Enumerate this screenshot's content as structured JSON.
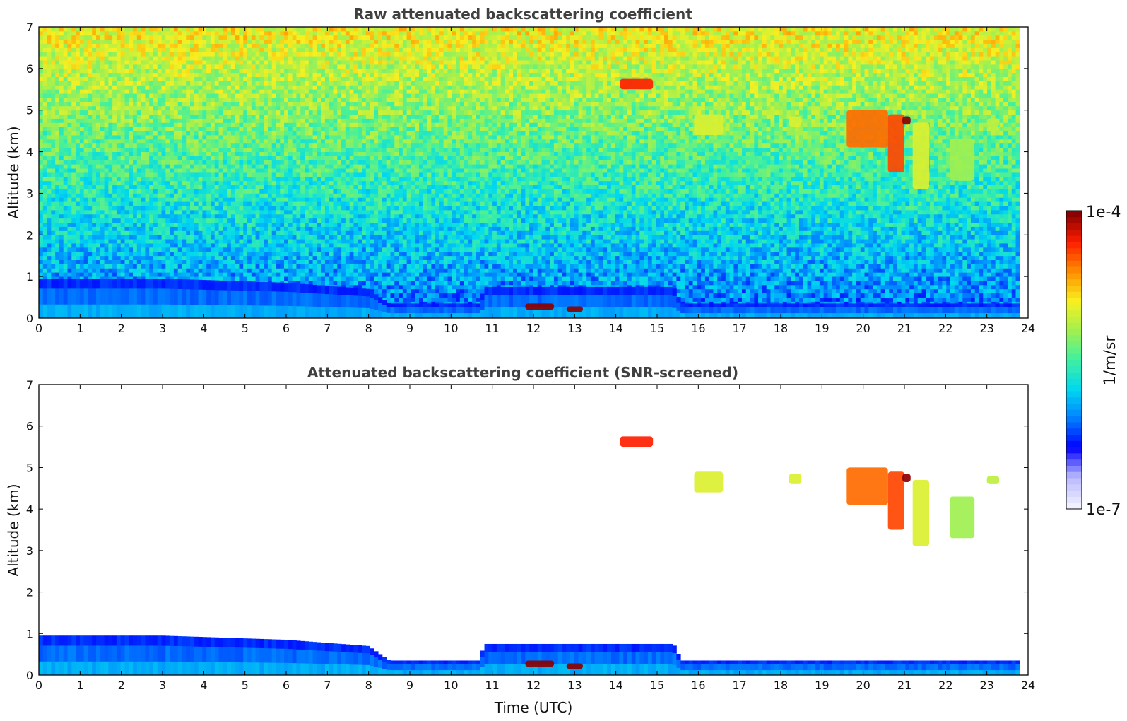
{
  "chart_data": [
    {
      "type": "heatmap",
      "title": "Raw attenuated backscattering coefficient",
      "xlabel": "",
      "ylabel": "Altitude (km)",
      "xlim": [
        0,
        24
      ],
      "ylim": [
        0,
        7
      ],
      "xticks": [
        "0",
        "1",
        "2",
        "3",
        "4",
        "5",
        "6",
        "7",
        "8",
        "9",
        "10",
        "11",
        "12",
        "13",
        "14",
        "15",
        "16",
        "17",
        "18",
        "19",
        "20",
        "21",
        "22",
        "23",
        "24"
      ],
      "yticks": [
        "0",
        "1",
        "2",
        "3",
        "4",
        "5",
        "6",
        "7"
      ],
      "data_end_time": 23.8,
      "noise_background": true,
      "boundary_layer": {
        "top_km": [
          {
            "t": 0,
            "h": 0.95
          },
          {
            "t": 3,
            "h": 0.95
          },
          {
            "t": 6,
            "h": 0.85
          },
          {
            "t": 8,
            "h": 0.7
          },
          {
            "t": 8.5,
            "h": 0.35
          },
          {
            "t": 10.7,
            "h": 0.35
          },
          {
            "t": 10.8,
            "h": 0.75
          },
          {
            "t": 15.4,
            "h": 0.75
          },
          {
            "t": 15.6,
            "h": 0.35
          },
          {
            "t": 23.8,
            "h": 0.35
          }
        ]
      },
      "cloud_features": [
        {
          "t_start": 11.8,
          "t_end": 12.5,
          "h_bottom": 0.2,
          "h_top": 0.35,
          "log10_beta": -4.0
        },
        {
          "t_start": 12.8,
          "t_end": 13.2,
          "h_bottom": 0.15,
          "h_top": 0.28,
          "log10_beta": -4.0
        },
        {
          "t_start": 14.1,
          "t_end": 14.9,
          "h_bottom": 5.5,
          "h_top": 5.75,
          "log10_beta": -4.3
        },
        {
          "t_start": 15.9,
          "t_end": 16.6,
          "h_bottom": 4.4,
          "h_top": 4.9,
          "log10_beta": -5.0
        },
        {
          "t_start": 18.2,
          "t_end": 18.5,
          "h_bottom": 4.6,
          "h_top": 4.85,
          "log10_beta": -5.0
        },
        {
          "t_start": 19.6,
          "t_end": 20.6,
          "h_bottom": 4.1,
          "h_top": 5.0,
          "log10_beta": -4.5
        },
        {
          "t_start": 20.6,
          "t_end": 21.0,
          "h_bottom": 3.5,
          "h_top": 4.9,
          "log10_beta": -4.4
        },
        {
          "t_start": 20.95,
          "t_end": 21.15,
          "h_bottom": 4.65,
          "h_top": 4.85,
          "log10_beta": -4.0
        },
        {
          "t_start": 21.2,
          "t_end": 21.6,
          "h_bottom": 3.1,
          "h_top": 4.7,
          "log10_beta": -5.0
        },
        {
          "t_start": 22.1,
          "t_end": 22.7,
          "h_bottom": 3.3,
          "h_top": 4.3,
          "log10_beta": -5.2
        },
        {
          "t_start": 23.0,
          "t_end": 23.3,
          "h_bottom": 4.6,
          "h_top": 4.8,
          "log10_beta": -5.1
        }
      ]
    },
    {
      "type": "heatmap",
      "title": "Attenuated backscattering coefficient (SNR-screened)",
      "xlabel": "Time (UTC)",
      "ylabel": "Altitude (km)",
      "xlim": [
        0,
        24
      ],
      "ylim": [
        0,
        7
      ],
      "xticks": [
        "0",
        "1",
        "2",
        "3",
        "4",
        "5",
        "6",
        "7",
        "8",
        "9",
        "10",
        "11",
        "12",
        "13",
        "14",
        "15",
        "16",
        "17",
        "18",
        "19",
        "20",
        "21",
        "22",
        "23",
        "24"
      ],
      "yticks": [
        "0",
        "1",
        "2",
        "3",
        "4",
        "5",
        "6",
        "7"
      ],
      "data_end_time": 23.8,
      "noise_background": false
    }
  ],
  "colorbar": {
    "label": "1/m/sr",
    "max_label": "1e-4",
    "min_label": "1e-7",
    "range_log10": [
      -7,
      -4
    ],
    "stops": [
      "#f0f0ff",
      "#b8b8ff",
      "#0000ff",
      "#0080ff",
      "#00d8f0",
      "#40f0a0",
      "#a0f050",
      "#f8f020",
      "#ff9000",
      "#ff2000",
      "#8b0000"
    ]
  }
}
